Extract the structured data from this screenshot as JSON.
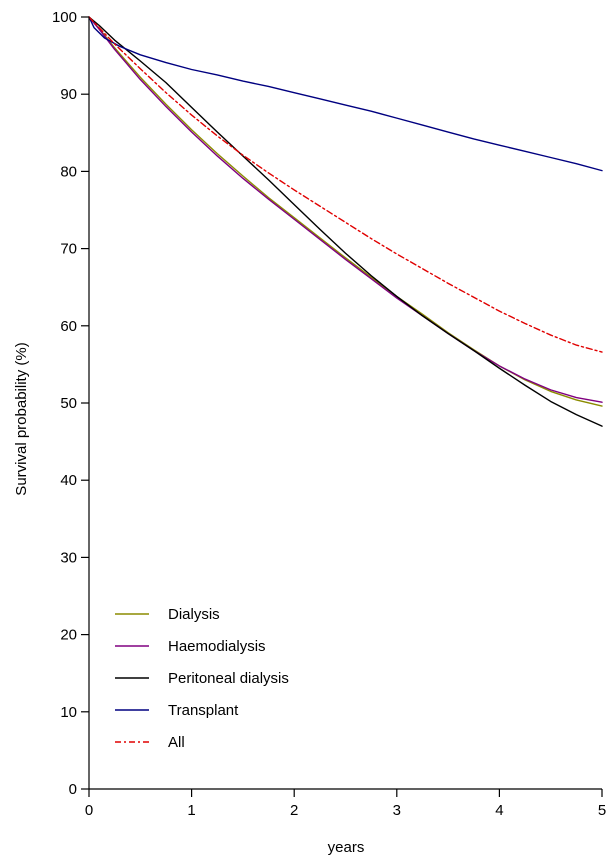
{
  "chart_data": {
    "type": "line",
    "title": "",
    "xlabel": "years",
    "ylabel": "Survival probability (%)",
    "xlim": [
      0,
      5
    ],
    "ylim": [
      0,
      100
    ],
    "xticks": [
      "0",
      "1",
      "2",
      "3",
      "4",
      "5"
    ],
    "yticks": [
      "0",
      "10",
      "20",
      "30",
      "40",
      "50",
      "60",
      "70",
      "80",
      "90",
      "100"
    ],
    "grid": false,
    "legend_position": "bottom-left",
    "series": [
      {
        "name": "Dialysis",
        "color": "#8b8b00",
        "dash": "solid",
        "x": [
          0,
          0.1,
          0.25,
          0.5,
          0.75,
          1,
          1.25,
          1.5,
          1.75,
          2,
          2.25,
          2.5,
          2.75,
          3,
          3.25,
          3.5,
          3.75,
          4,
          4.25,
          4.5,
          4.75,
          5
        ],
        "y": [
          100,
          98.5,
          96,
          92.2,
          88.7,
          85.4,
          82.3,
          79.4,
          76.6,
          74,
          71.4,
          68.8,
          66.3,
          63.8,
          61.5,
          59.1,
          56.9,
          54.8,
          53,
          51.5,
          50.4,
          49.6
        ]
      },
      {
        "name": "Haemodialysis",
        "color": "#800080",
        "dash": "solid",
        "x": [
          0,
          0.1,
          0.25,
          0.5,
          0.75,
          1,
          1.25,
          1.5,
          1.75,
          2,
          2.25,
          2.5,
          2.75,
          3,
          3.25,
          3.5,
          3.75,
          4,
          4.25,
          4.5,
          4.75,
          5
        ],
        "y": [
          100,
          98.4,
          95.8,
          91.9,
          88.4,
          85.1,
          82,
          79.1,
          76.4,
          73.8,
          71.2,
          68.6,
          66.1,
          63.6,
          61.3,
          59,
          56.8,
          54.8,
          53.1,
          51.7,
          50.7,
          50.1
        ]
      },
      {
        "name": "Peritoneal dialysis",
        "color": "#000000",
        "dash": "solid",
        "x": [
          0,
          0.1,
          0.25,
          0.5,
          0.75,
          1,
          1.25,
          1.5,
          1.75,
          2,
          2.25,
          2.5,
          2.75,
          3,
          3.25,
          3.5,
          3.75,
          4,
          4.25,
          4.5,
          4.75,
          5
        ],
        "y": [
          100,
          98.9,
          97,
          94.3,
          91.5,
          88.3,
          85.1,
          82,
          78.9,
          75.7,
          72.5,
          69.4,
          66.5,
          63.8,
          61.3,
          59,
          56.8,
          54.5,
          52.3,
          50.2,
          48.5,
          47
        ]
      },
      {
        "name": "Transplant",
        "color": "#000080",
        "dash": "solid",
        "x": [
          0,
          0.05,
          0.15,
          0.3,
          0.5,
          0.75,
          1,
          1.25,
          1.5,
          1.75,
          2,
          2.25,
          2.5,
          2.75,
          3,
          3.25,
          3.5,
          3.75,
          4,
          4.25,
          4.5,
          4.75,
          5
        ],
        "y": [
          100,
          98.6,
          97.3,
          96.2,
          95.1,
          94.1,
          93.2,
          92.5,
          91.7,
          91,
          90.2,
          89.4,
          88.6,
          87.8,
          86.9,
          86,
          85.1,
          84.2,
          83.4,
          82.6,
          81.8,
          81,
          80.1
        ]
      },
      {
        "name": "All",
        "color": "#e00000",
        "dash": "dashdot",
        "x": [
          0,
          0.1,
          0.25,
          0.5,
          0.75,
          1,
          1.25,
          1.5,
          1.75,
          2,
          2.25,
          2.5,
          2.75,
          3,
          3.25,
          3.5,
          3.75,
          4,
          4.25,
          4.5,
          4.75,
          5
        ],
        "y": [
          100,
          98.6,
          96.5,
          93.3,
          90.2,
          87.3,
          84.6,
          82.1,
          79.8,
          77.6,
          75.5,
          73.4,
          71.3,
          69.3,
          67.4,
          65.5,
          63.7,
          61.9,
          60.3,
          58.8,
          57.5,
          56.6
        ]
      }
    ]
  }
}
